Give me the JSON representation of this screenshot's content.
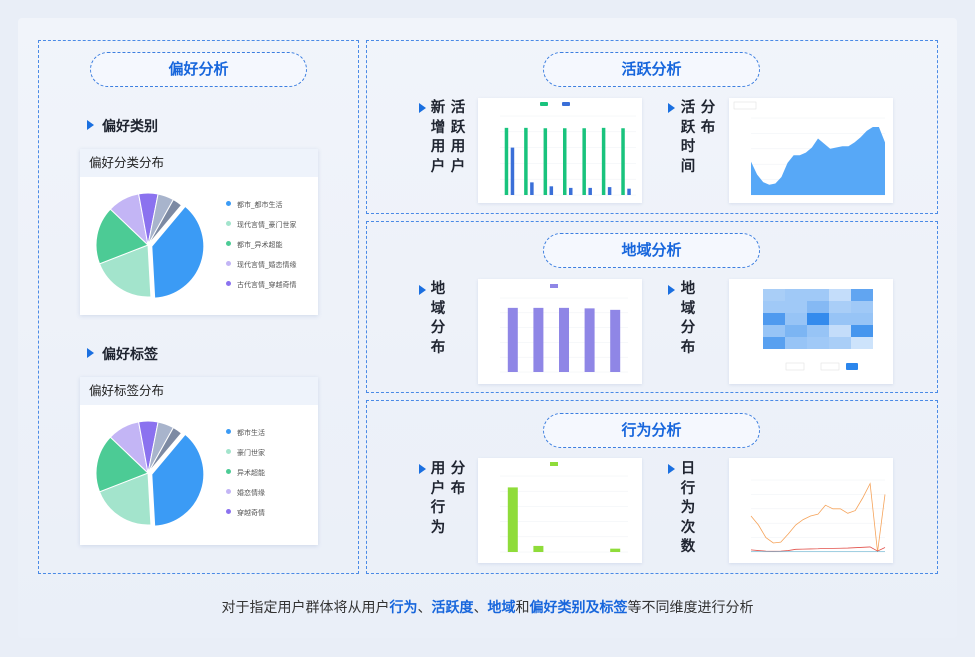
{
  "preference": {
    "title": "偏好分析",
    "category": {
      "heading": "偏好类别",
      "card_title": "偏好分类分布",
      "legend": [
        "都市_都市生活",
        "现代言情_豪门世家",
        "都市_异术超能",
        "现代言情_婚恋情缘",
        "古代言情_穿越奇情"
      ]
    },
    "tags": {
      "heading": "偏好标签",
      "card_title": "偏好标签分布",
      "legend": [
        "都市生活",
        "豪门世家",
        "异术超能",
        "婚恋情缘",
        "穿越奇情"
      ]
    },
    "pie_values": [
      38,
      20,
      18,
      10,
      6,
      5,
      3
    ],
    "pie_colors": [
      "#3b9bf5",
      "#a3e4cc",
      "#4ccb95",
      "#c3b5f5",
      "#8b72ef",
      "#a8b4cc",
      "#7d8aa3"
    ]
  },
  "activity": {
    "title": "活跃分析",
    "label_new_users": "新增用户",
    "label_active_users": "活跃用户",
    "label_active_time": "活跃时间",
    "label_dist": "分布",
    "bars_green": [
      85000,
      85000,
      84500,
      84500,
      84500,
      85000,
      84500
    ],
    "bars_blue": [
      60000,
      16000,
      11000,
      9000,
      9000,
      10000,
      8000
    ],
    "bars_ymax": 100000,
    "area_values": [
      13000,
      8000,
      5000,
      4000,
      4500,
      7000,
      12500,
      15500,
      15500,
      16500,
      18500,
      22000,
      20000,
      18000,
      18500,
      19000,
      19000,
      20500,
      22500,
      25000,
      26500,
      26500,
      20500
    ],
    "area_ymax": 30000,
    "colors": {
      "green": "#19c37d",
      "blue": "#3a6fd8",
      "area": "#57a8f7"
    }
  },
  "region": {
    "title": "地域分析",
    "label_left": "地域分布",
    "label_right": "地域分布",
    "bars": [
      26000,
      26000,
      26000,
      25800,
      25200
    ],
    "bars_ymax": 30000,
    "bar_color": "#8f86e6",
    "heatmap": [
      [
        0.3,
        0.35,
        0.35,
        0.15,
        0.7
      ],
      [
        0.35,
        0.35,
        0.5,
        0.3,
        0.35
      ],
      [
        0.8,
        0.4,
        0.95,
        0.4,
        0.4
      ],
      [
        0.4,
        0.55,
        0.4,
        0.15,
        0.85
      ],
      [
        0.75,
        0.4,
        0.35,
        0.3,
        0.1
      ]
    ],
    "heat_color": "#2b86ec"
  },
  "behavior": {
    "title": "行为分析",
    "label_user_behavior": "用户行为",
    "label_dist": "分布",
    "label_daily": "日行为次数",
    "bars": [
      425000,
      40000,
      0,
      0,
      22000
    ],
    "bars_ymax": 500000,
    "bar_color": "#8fdc3a",
    "line_orange": [
      200000,
      150000,
      80000,
      50000,
      55000,
      100000,
      150000,
      180000,
      200000,
      210000,
      260000,
      240000,
      240000,
      215000,
      230000,
      300000,
      380000,
      0,
      320000
    ],
    "line_red": [
      12000,
      8000,
      5000,
      4000,
      5000,
      8000,
      15000,
      16000,
      17000,
      18000,
      20000,
      20000,
      21000,
      22000,
      24000,
      26000,
      28000,
      5000,
      25000
    ],
    "line_ymax": 400000,
    "colors": {
      "orange": "#f5a35a",
      "red": "#e2504a",
      "teal": "#4aa4c8"
    }
  },
  "footer": {
    "segments": [
      {
        "text": "对于指定用户群体将从用户",
        "hl": false
      },
      {
        "text": "行为",
        "hl": true
      },
      {
        "text": "、",
        "hl": false
      },
      {
        "text": "活跃度",
        "hl": true
      },
      {
        "text": "、",
        "hl": false
      },
      {
        "text": "地域",
        "hl": true
      },
      {
        "text": "和",
        "hl": false
      },
      {
        "text": "偏好类别及标签",
        "hl": true
      },
      {
        "text": "等不同维度进行分析",
        "hl": false
      }
    ]
  }
}
